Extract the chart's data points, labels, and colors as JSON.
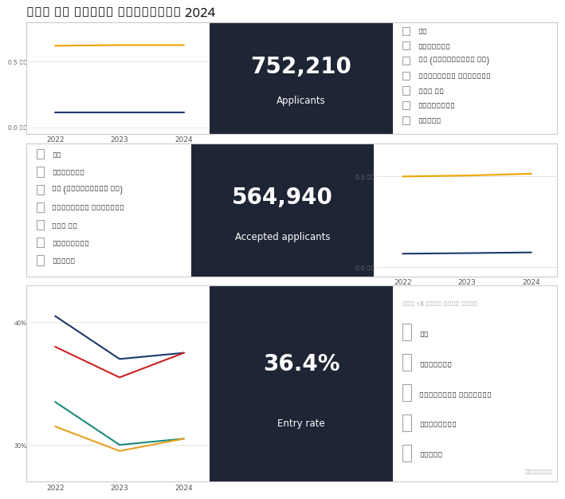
{
  "title": "End of cycle analysis 2024",
  "title_fontsize": 12,
  "bg_color": "#ffffff",
  "dark_bg": "#1e2535",
  "panel_border": "#cccccc",
  "panel1": {
    "big_number": "752,210",
    "big_label": "Applicants",
    "years": [
      2022,
      2023,
      2024
    ],
    "line1": {
      "color": "#f0a500",
      "values": [
        0.62,
        0.625,
        0.625
      ]
    },
    "line2": {
      "color": "#1a3a6b",
      "values": [
        0.115,
        0.115,
        0.115
      ]
    },
    "ylim": [
      -0.05,
      0.8
    ],
    "yticks": [
      0.0,
      0.5
    ],
    "ytick_labels": [
      "0.0 百万",
      "0.5 百万"
    ],
    "legend_items": [
      "全选",
      "England",
      "EU (excluding UK)",
      "Northern Ireland",
      "Not EU",
      "Scotland",
      "Wales"
    ],
    "legend_side": "right"
  },
  "panel2": {
    "big_number": "564,940",
    "big_label": "Accepted applicants",
    "years": [
      2022,
      2023,
      2024
    ],
    "line1": {
      "color": "#f0a500",
      "values": [
        0.5,
        0.505,
        0.515
      ]
    },
    "line2": {
      "color": "#1a3a6b",
      "values": [
        0.075,
        0.078,
        0.082
      ]
    },
    "ylim": [
      -0.05,
      0.68
    ],
    "yticks": [
      0.0,
      0.5
    ],
    "ytick_labels": [
      "0.0 百万",
      "0.5 百万"
    ],
    "legend_items": [
      "全选",
      "England",
      "EU (excluding UK)",
      "Northern Ireland",
      "Not EU",
      "Scotland",
      "Wales"
    ],
    "legend_side": "left"
  },
  "panel3": {
    "big_number": "36.4%",
    "big_label": "Entry rate",
    "years": [
      2022,
      2023,
      2024
    ],
    "line1": {
      "color": "#1a3a6b",
      "values": [
        40.5,
        37.0,
        37.5
      ]
    },
    "line2": {
      "color": "#cc2222",
      "values": [
        38.0,
        35.5,
        37.5
      ]
    },
    "line3": {
      "color": "#1a8a7a",
      "values": [
        33.5,
        30.0,
        30.5
      ]
    },
    "line4": {
      "color": "#e8a020",
      "values": [
        31.5,
        29.5,
        30.5
      ]
    },
    "ylim": [
      27.0,
      43.0
    ],
    "yticks": [
      30,
      40
    ],
    "ytick_labels": [
      "30%",
      "40%"
    ],
    "legend_header": "For 18 year olds from",
    "legend_items": [
      "全选",
      "England",
      "Northern Ireland",
      "Scotland",
      "Wales"
    ],
    "legend_side": "right"
  },
  "legend_text_color": "#333333",
  "watermark": "公众号·戴森云"
}
